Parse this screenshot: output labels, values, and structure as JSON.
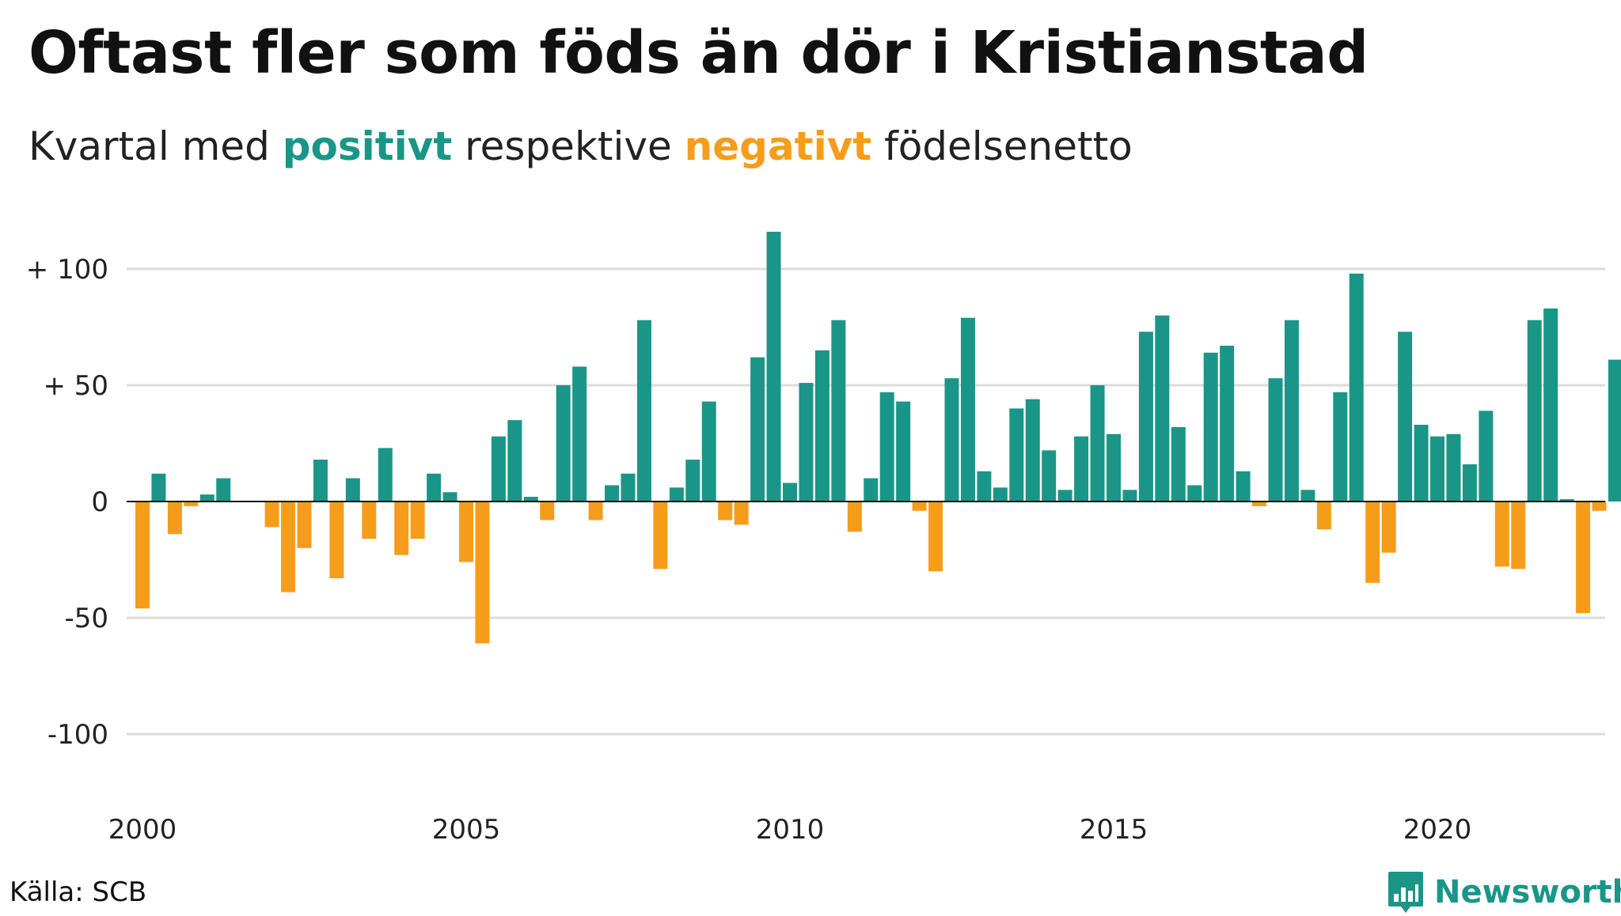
{
  "title": "Oftast fler som föds än dör i Kristianstad",
  "subtitle": {
    "part1": "Kvartal med ",
    "positive_word": "positivt",
    "part2": " respektive ",
    "negative_word": "negativt",
    "part3": " födelsenetto"
  },
  "colors": {
    "positive": "#1a9688",
    "negative": "#f59d1a",
    "grid": "#dddddd",
    "axis": "#111111"
  },
  "source": "Källa: SCB",
  "brand": {
    "name": "Newsworthy",
    "icon": "newsworthy-logo-icon"
  },
  "chart_data": {
    "type": "bar",
    "ylim": [
      -130,
      125
    ],
    "y_ticks": [
      {
        "value": 100,
        "label": "+ 100"
      },
      {
        "value": 50,
        "label": "+  50"
      },
      {
        "value": 0,
        "label": "0"
      },
      {
        "value": -50,
        "label": "-50"
      },
      {
        "value": -100,
        "label": "-100"
      }
    ],
    "x_ticks": [
      "2000",
      "2005",
      "2010",
      "2015",
      "2020"
    ],
    "x_tick_years": [
      2000,
      2005,
      2010,
      2015,
      2020
    ],
    "start_year": 2000,
    "grid": true,
    "values": [
      -46,
      12,
      -14,
      -2,
      3,
      10,
      0,
      0,
      -11,
      -39,
      -20,
      18,
      -33,
      10,
      -16,
      23,
      -23,
      -16,
      12,
      4,
      -26,
      -61,
      28,
      35,
      2,
      -8,
      50,
      58,
      -8,
      7,
      12,
      78,
      -29,
      6,
      18,
      43,
      -8,
      -10,
      62,
      116,
      8,
      51,
      65,
      78,
      -13,
      10,
      47,
      43,
      -4,
      -30,
      53,
      79,
      13,
      6,
      40,
      44,
      22,
      5,
      28,
      50,
      29,
      5,
      73,
      80,
      32,
      7,
      64,
      67,
      13,
      -2,
      53,
      78,
      5,
      -12,
      47,
      98,
      -35,
      -22,
      73,
      33,
      28,
      29,
      16,
      39,
      -28,
      -29,
      78,
      83,
      1,
      -48,
      -4,
      61
    ]
  }
}
